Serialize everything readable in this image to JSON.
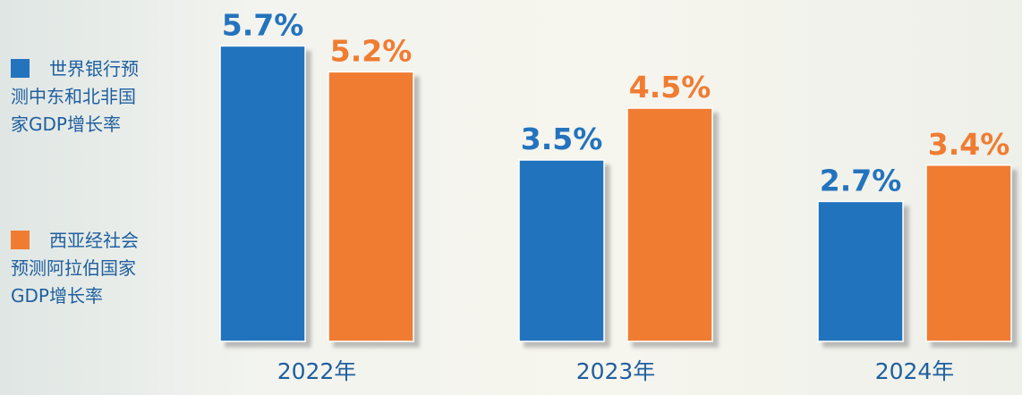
{
  "chart_data": {
    "type": "bar",
    "categories": [
      "2022年",
      "2023年",
      "2024年"
    ],
    "series": [
      {
        "name": "世界银行预测中东和北非国家GDP增长率",
        "color": "#2473bd",
        "values": [
          5.7,
          3.5,
          2.7
        ],
        "value_labels": [
          "5.7%",
          "3.5%",
          "2.7%"
        ]
      },
      {
        "name": "西亚经社会预测阿拉伯国家GDP增长率",
        "color": "#f07c32",
        "values": [
          5.2,
          4.5,
          3.4
        ],
        "value_labels": [
          "5.2%",
          "4.5%",
          "3.4%"
        ]
      }
    ],
    "ylim": [
      0,
      6.6
    ]
  }
}
